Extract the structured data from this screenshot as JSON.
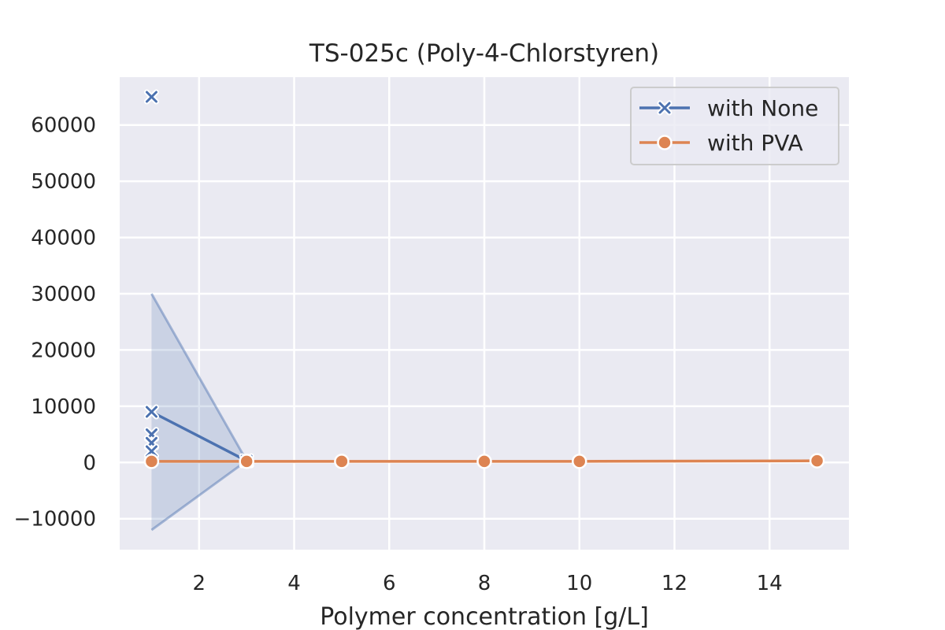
{
  "chart_data": {
    "type": "line",
    "title": "TS-025c (Poly-4-Chlorstyren)",
    "xlabel": "Polymer concentration [g/L]",
    "ylabel": "",
    "xlim": [
      0.33,
      15.67
    ],
    "ylim": [
      -15500,
      68500
    ],
    "xticks": [
      2,
      4,
      6,
      8,
      10,
      12,
      14
    ],
    "yticks": [
      -10000,
      0,
      10000,
      20000,
      30000,
      40000,
      50000,
      60000
    ],
    "ytick_labels": [
      "−10000",
      "0",
      "10000",
      "20000",
      "30000",
      "40000",
      "50000",
      "60000"
    ],
    "grid": true,
    "legend_position": "top-right",
    "series": [
      {
        "name": "with None",
        "color": "#4c72b0",
        "marker": "x",
        "line": [
          {
            "x": 1,
            "y": 9000
          },
          {
            "x": 3,
            "y": 300
          }
        ],
        "band": {
          "color": "#4c72b0",
          "upper": [
            {
              "x": 1,
              "y": 30000
            },
            {
              "x": 3,
              "y": 300
            }
          ],
          "lower": [
            {
              "x": 1,
              "y": -12000
            },
            {
              "x": 3,
              "y": 300
            }
          ]
        },
        "points": [
          {
            "x": 1,
            "y": 65000
          },
          {
            "x": 1,
            "y": 9000
          },
          {
            "x": 1,
            "y": 5000
          },
          {
            "x": 1,
            "y": 3500
          },
          {
            "x": 1,
            "y": 2000
          },
          {
            "x": 3,
            "y": 300
          }
        ]
      },
      {
        "name": "with PVA",
        "color": "#dd8452",
        "marker": "o",
        "line": [
          {
            "x": 1,
            "y": 200
          },
          {
            "x": 3,
            "y": 200
          },
          {
            "x": 5,
            "y": 200
          },
          {
            "x": 8,
            "y": 200
          },
          {
            "x": 10,
            "y": 200
          },
          {
            "x": 15,
            "y": 300
          }
        ],
        "points": [
          {
            "x": 1,
            "y": 200
          },
          {
            "x": 3,
            "y": 200
          },
          {
            "x": 5,
            "y": 200
          },
          {
            "x": 8,
            "y": 200
          },
          {
            "x": 10,
            "y": 200
          },
          {
            "x": 15,
            "y": 300
          }
        ]
      }
    ]
  }
}
